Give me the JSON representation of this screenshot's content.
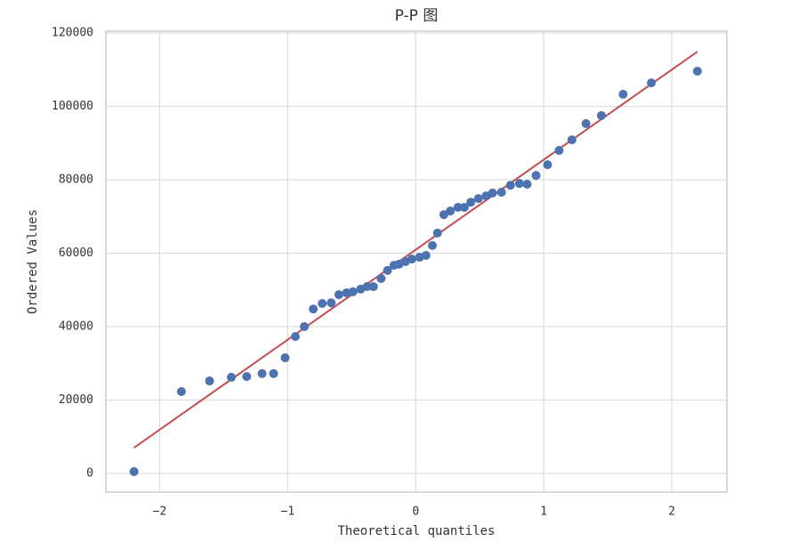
{
  "chart_data": {
    "type": "scatter",
    "title": "P-P 图",
    "x_label": "Theoretical quantiles",
    "y_label": "Ordered Values",
    "xlim": [
      -2.42,
      2.43
    ],
    "ylim": [
      -5100,
      120500
    ],
    "xticks": [
      {
        "value": -2,
        "label": "−2"
      },
      {
        "value": -1,
        "label": "−1"
      },
      0,
      1,
      2
    ],
    "yticks": [
      0,
      20000,
      40000,
      60000,
      80000,
      100000,
      120000
    ],
    "grid": true,
    "series": [
      {
        "color": "#4c72b0",
        "x": [
          -2.2,
          -1.83,
          -1.61,
          -1.44,
          -1.32,
          -1.2,
          -1.11,
          -1.02,
          -0.94,
          -0.87,
          -0.8,
          -0.73,
          -0.66,
          -0.6,
          -0.54,
          -0.49,
          -0.43,
          -0.38,
          -0.33,
          -0.27,
          -0.22,
          -0.17,
          -0.13,
          -0.08,
          -0.03,
          0.03,
          0.08,
          0.13,
          0.17,
          0.22,
          0.27,
          0.33,
          0.38,
          0.43,
          0.49,
          0.55,
          0.6,
          0.67,
          0.74,
          0.81,
          0.87,
          0.94,
          1.03,
          1.12,
          1.22,
          1.33,
          1.45,
          1.62,
          1.84,
          2.2
        ],
        "values": [
          500,
          22300,
          25200,
          26200,
          26400,
          27200,
          27200,
          31500,
          37300,
          40000,
          44800,
          46300,
          46500,
          48700,
          49200,
          49500,
          50200,
          50900,
          50900,
          53100,
          55300,
          56700,
          57000,
          57700,
          58400,
          58900,
          59400,
          62100,
          65500,
          70500,
          71500,
          72500,
          72500,
          73900,
          74900,
          75600,
          76400,
          76600,
          78500,
          79000,
          78800,
          81200,
          84100,
          88000,
          90900,
          95300,
          97500,
          103300,
          106400,
          109600
        ]
      }
    ],
    "fit_line": {
      "color": "#c44e52",
      "x": [
        -2.2,
        2.2
      ],
      "values": [
        7000,
        114900
      ]
    }
  }
}
